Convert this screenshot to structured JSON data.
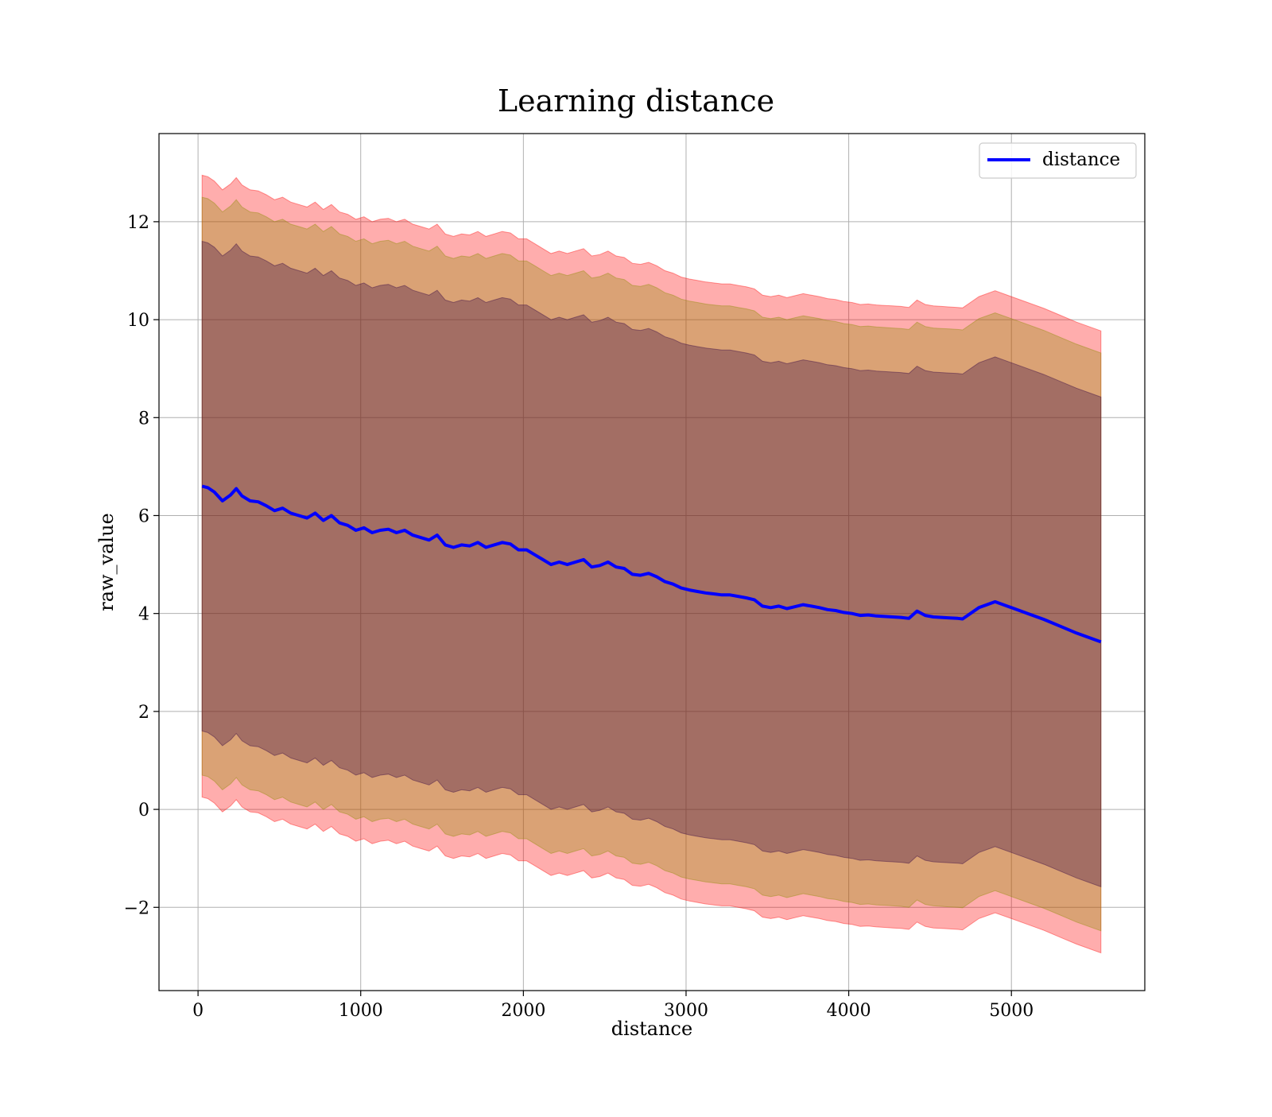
{
  "chart_data": {
    "type": "line",
    "title": "Learning distance",
    "xlabel": "distance",
    "ylabel": "raw_value",
    "xlim": [
      -240,
      5820
    ],
    "ylim": [
      -3.7,
      13.8
    ],
    "x_ticks": [
      0,
      1000,
      2000,
      3000,
      4000,
      5000
    ],
    "y_ticks": [
      -2,
      0,
      2,
      4,
      6,
      8,
      10,
      12
    ],
    "x_tick_labels": [
      "0",
      "1000",
      "2000",
      "3000",
      "4000",
      "5000"
    ],
    "y_tick_labels": [
      "−2",
      "0",
      "2",
      "4",
      "6",
      "8",
      "10",
      "12"
    ],
    "grid": true,
    "legend": {
      "position": "top-right",
      "entries": [
        "distance"
      ]
    },
    "colors": {
      "line": "#0000ff",
      "outer_band": "#ff0000",
      "middle_band": "#8b8b00",
      "inner_band": "#2f0040",
      "grid": "#b0b0b0"
    },
    "series": [
      {
        "name": "distance",
        "x": [
          25,
          60,
          100,
          150,
          200,
          235,
          270,
          320,
          370,
          420,
          470,
          520,
          570,
          620,
          670,
          720,
          770,
          820,
          870,
          920,
          970,
          1020,
          1070,
          1120,
          1170,
          1220,
          1270,
          1320,
          1370,
          1420,
          1470,
          1520,
          1570,
          1620,
          1670,
          1720,
          1770,
          1820,
          1870,
          1920,
          1970,
          2020,
          2070,
          2120,
          2170,
          2220,
          2270,
          2320,
          2370,
          2420,
          2470,
          2520,
          2570,
          2620,
          2670,
          2720,
          2770,
          2820,
          2870,
          2920,
          2970,
          3020,
          3070,
          3120,
          3170,
          3220,
          3270,
          3320,
          3370,
          3420,
          3470,
          3520,
          3570,
          3620,
          3670,
          3720,
          3770,
          3820,
          3870,
          3920,
          3970,
          4020,
          4070,
          4120,
          4170,
          4220,
          4270,
          4320,
          4370,
          4420,
          4470,
          4520,
          4570,
          4620,
          4670,
          4700,
          4800,
          4900,
          5000,
          5100,
          5200,
          5300,
          5400,
          5550
        ],
        "y": [
          6.6,
          6.57,
          6.48,
          6.3,
          6.42,
          6.55,
          6.4,
          6.3,
          6.28,
          6.2,
          6.1,
          6.15,
          6.05,
          6.0,
          5.95,
          6.05,
          5.9,
          6.0,
          5.85,
          5.8,
          5.7,
          5.75,
          5.65,
          5.7,
          5.72,
          5.65,
          5.7,
          5.6,
          5.55,
          5.5,
          5.6,
          5.4,
          5.35,
          5.4,
          5.38,
          5.45,
          5.35,
          5.4,
          5.45,
          5.42,
          5.3,
          5.3,
          5.2,
          5.1,
          5.0,
          5.05,
          5.0,
          5.05,
          5.1,
          4.95,
          4.98,
          5.05,
          4.95,
          4.92,
          4.8,
          4.78,
          4.82,
          4.75,
          4.65,
          4.6,
          4.52,
          4.48,
          4.45,
          4.42,
          4.4,
          4.38,
          4.38,
          4.35,
          4.32,
          4.28,
          4.15,
          4.12,
          4.15,
          4.1,
          4.14,
          4.18,
          4.15,
          4.12,
          4.08,
          4.06,
          4.02,
          4.0,
          3.96,
          3.97,
          3.95,
          3.94,
          3.93,
          3.92,
          3.9,
          4.05,
          3.96,
          3.93,
          3.92,
          3.91,
          3.9,
          3.89,
          4.12,
          4.24,
          4.12,
          4.0,
          3.88,
          3.74,
          3.6,
          3.42
        ]
      }
    ],
    "bands": [
      {
        "name": "inner",
        "half_width": 5.0
      },
      {
        "name": "middle",
        "half_width": 5.9
      },
      {
        "name": "outer",
        "half_width": 6.35
      }
    ]
  }
}
